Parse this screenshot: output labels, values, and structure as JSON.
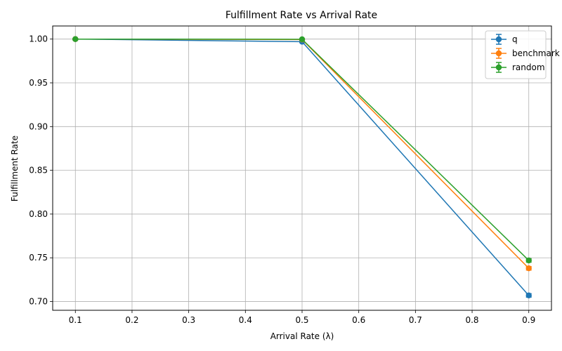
{
  "chart_data": {
    "type": "line",
    "title": "Fulfillment Rate vs Arrival Rate",
    "xlabel": "Arrival Rate (λ)",
    "ylabel": "Fulfillment Rate",
    "x": [
      0.1,
      0.5,
      0.9
    ],
    "xlim": [
      0.06,
      0.94
    ],
    "ylim": [
      0.69,
      1.015
    ],
    "xticks": [
      "0.1",
      "0.2",
      "0.3",
      "0.4",
      "0.5",
      "0.6",
      "0.7",
      "0.8",
      "0.9"
    ],
    "yticks": [
      "0.70",
      "0.75",
      "0.80",
      "0.85",
      "0.90",
      "0.95",
      "1.00"
    ],
    "grid": true,
    "legend_position": "top-right",
    "series": [
      {
        "name": "q",
        "color": "#1f77b4",
        "values": [
          1.0,
          0.997,
          0.707
        ],
        "errors": [
          0.0005,
          0.0008,
          0.002
        ]
      },
      {
        "name": "benchmark",
        "color": "#ff7f0e",
        "values": [
          1.0,
          0.9995,
          0.738
        ],
        "errors": [
          0.0005,
          0.0005,
          0.002
        ]
      },
      {
        "name": "random",
        "color": "#2ca02c",
        "values": [
          1.0,
          0.9998,
          0.747
        ],
        "errors": [
          0.0005,
          0.0005,
          0.002
        ]
      }
    ]
  }
}
